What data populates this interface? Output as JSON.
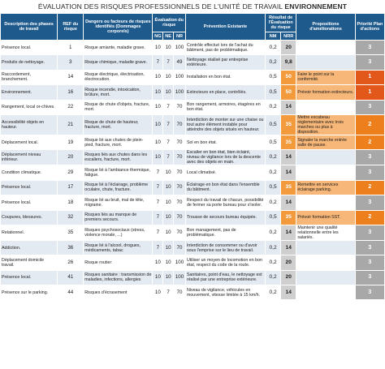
{
  "title": {
    "prefix": "ÉVALUATION DES RISQUES PROFESSIONNELS DE L'UNITÉ DE TRAVAIL",
    "bold": "ENVIRONNEMENT"
  },
  "headers": {
    "description": "Description des phases de travail",
    "ref": "REF du risque",
    "dangers": "Dangers ou facteurs de risques identifiés (Dommages corporels)",
    "evaluation": "Évaluation du risque",
    "ng": "NG",
    "ne": "NE",
    "nr": "NR",
    "prevention": "Prévention Existante",
    "result": "Résultat de l'Évaluation du risque",
    "nm": "NM",
    "nrr": "NRR",
    "propositions": "Propositions d'améliorations",
    "priority": "Priorité Plan d'actions"
  },
  "colors": {
    "header": "#1f5a8c",
    "nrr_orange": "#f39a3d",
    "priority_red": "#e2571a",
    "priority_orange": "#ee7f1d",
    "priority_grey": "#a8a8a8"
  },
  "rows": [
    {
      "desc": "Présence local.",
      "ref": "1",
      "danger": "Risque amiante, maladie grave.",
      "ng": "10",
      "ne": "10",
      "nr": "100",
      "prev": "Contrôle effectué lors de l'achat du bâtiment, pas de problématique.",
      "nm": "0,2",
      "nrr": "20",
      "prop": "",
      "prio": "3",
      "nrr_level": "grey",
      "prio_level": "grey"
    },
    {
      "desc": "Produits de nettoyage.",
      "ref": "3",
      "danger": "Risque chimique, maladie grave.",
      "ng": "7",
      "ne": "7",
      "nr": "49",
      "prev": "Nettoyage réalisé par entreprise extérieure.",
      "nm": "0,2",
      "nrr": "9,8",
      "prop": "",
      "prio": "3",
      "nrr_level": "grey",
      "prio_level": "grey"
    },
    {
      "desc": "Raccordement, branchement.",
      "ref": "14",
      "danger": "Risque électrique, électrisation, électrocution.",
      "ng": "10",
      "ne": "10",
      "nr": "100",
      "prev": "Installation en bon état.",
      "nm": "0,5",
      "nrr": "50",
      "prop": "Faire le point sur la conformité.",
      "prio": "1",
      "nrr_level": "orange",
      "prio_level": "red"
    },
    {
      "desc": "Environnement.",
      "ref": "16",
      "danger": "Risque incendie, intoxication, brûlure, mort.",
      "ng": "10",
      "ne": "10",
      "nr": "100",
      "prev": "Extincteurs en place, contrôlés.",
      "nm": "0,5",
      "nrr": "50",
      "prop": "Prévoir formation extincteurs.",
      "prio": "1",
      "nrr_level": "orange",
      "prio_level": "red"
    },
    {
      "desc": "Rangement, local or-chives.",
      "ref": "22",
      "danger": "Risque de chute d'objets, fracture, mort.",
      "ng": "10",
      "ne": "7",
      "nr": "70",
      "prev": "Bon rangement, armoires, étagères en bon état.",
      "nm": "0,2",
      "nrr": "14",
      "prop": "",
      "prio": "3",
      "nrr_level": "grey",
      "prio_level": "grey"
    },
    {
      "desc": "Accessibilité objets en hauteur.",
      "ref": "21",
      "danger": "Risque de chute de hauteur, fracture, mort.",
      "ng": "10",
      "ne": "7",
      "nr": "70",
      "prev": "Interdiction de monter sur une chaise ou tout autre élément instable pour atteindre des objets situés en hauteur.",
      "nm": "0,5",
      "nrr": "35",
      "prop": "Mettre escabeau réglementaire avec trois marches ou plus à disposition.",
      "prio": "2",
      "nrr_level": "orange",
      "prio_level": "orange"
    },
    {
      "desc": "Déplacement local.",
      "ref": "19",
      "danger": "Risque lié aux chutes de plein-pied, fracture, mort.",
      "ng": "10",
      "ne": "7",
      "nr": "70",
      "prev": "Sol en bon état.",
      "nm": "0,5",
      "nrr": "35",
      "prop": "Signaler la marche entrée salle de pause.",
      "prio": "2",
      "nrr_level": "orange",
      "prio_level": "orange"
    },
    {
      "desc": "Déplacement niveau inférieur.",
      "ref": "20",
      "danger": "Risques liés aux chutes dans les escaliers, fracture, mort.",
      "ng": "10",
      "ne": "7",
      "nr": "70",
      "prev": "Escalier en bon état, bien éclairé, niveau de vigilance lors de la descente avec des objets en main.",
      "nm": "0,2",
      "nrr": "14",
      "prop": "",
      "prio": "3",
      "nrr_level": "grey",
      "prio_level": "grey"
    },
    {
      "desc": "Condition climatique.",
      "ref": "29",
      "danger": "Risque lié à l'ambiance thermique, fatigue.",
      "ng": "7",
      "ne": "10",
      "nr": "70",
      "prev": "Local climatisé.",
      "nm": "0,2",
      "nrr": "14",
      "prop": "",
      "prio": "3",
      "nrr_level": "grey",
      "prio_level": "grey"
    },
    {
      "desc": "Présence local.",
      "ref": "17",
      "danger": "Risque lié à l'éclairage, problème oculaire, chute, fracture.",
      "ng": "7",
      "ne": "10",
      "nr": "70",
      "prev": "Éclairage en bon état dans l'ensemble du bâtiment.",
      "nm": "0,5",
      "nrr": "35",
      "prop": "Remettre en services éclairage parking.",
      "prio": "2",
      "nrr_level": "orange",
      "prio_level": "orange"
    },
    {
      "desc": "Présence local.",
      "ref": "18",
      "danger": "Risque lié au bruit, mal de tête, migraine.",
      "ng": "7",
      "ne": "10",
      "nr": "70",
      "prev": "Respect du travail de chacun, possibilité de fermer sa porte bureau pour s'isoler.",
      "nm": "0,2",
      "nrr": "14",
      "prop": "",
      "prio": "3",
      "nrr_level": "grey",
      "prio_level": "grey"
    },
    {
      "desc": "Coupures, blessures.",
      "ref": "32",
      "danger": "Risques liés au manque de premiers secours.",
      "ng": "7",
      "ne": "10",
      "nr": "70",
      "prev": "Trousse de secours bureau équipée.",
      "nm": "0,5",
      "nrr": "35",
      "prop": "Prévoir formation SST.",
      "prio": "2",
      "nrr_level": "orange",
      "prio_level": "orange"
    },
    {
      "desc": "Relationnel.",
      "ref": "35",
      "danger": "Risques psychosociaux (stress, violence morale, ...)",
      "ng": "7",
      "ne": "10",
      "nr": "70",
      "prev": "Bon management, pas de problématique.",
      "nm": "0,2",
      "nrr": "14",
      "prop": "Maintenir une qualité relationnelle entre les salariés.",
      "prio": "3",
      "nrr_level": "grey",
      "prio_level": "grey"
    },
    {
      "desc": "Addiction.",
      "ref": "36",
      "danger": "Risque lié à l'alcool, drogues, médicaments, tabac",
      "ng": "7",
      "ne": "10",
      "nr": "70",
      "prev": "Interdiction de consommer ou d'avoir sous l'emprise sur le lieu de travail.",
      "nm": "0,2",
      "nrr": "14",
      "prop": "",
      "prio": "3",
      "nrr_level": "grey",
      "prio_level": "grey"
    },
    {
      "desc": "Déplacement domicile travail.",
      "ref": "26",
      "danger": "Risque routier",
      "ng": "10",
      "ne": "10",
      "nr": "100",
      "prev": "Utiliser un moyen de locomotion en bon état, respect du code de la route.",
      "nm": "0,2",
      "nrr": "20",
      "prop": "",
      "prio": "3",
      "nrr_level": "grey",
      "prio_level": "grey"
    },
    {
      "desc": "Présence local.",
      "ref": "41",
      "danger": "Risques sanitaire : transmission de maladies, infections, allergies",
      "ng": "10",
      "ne": "10",
      "nr": "100",
      "prev": "Sanitaires, point d'eau, le nettoyage est réalisé par une entreprise extérieure.",
      "nm": "0,2",
      "nrr": "20",
      "prop": "",
      "prio": "3",
      "nrr_level": "grey",
      "prio_level": "grey"
    },
    {
      "desc": "Présence sur le parking.",
      "ref": "44",
      "danger": "Risques d'écrasement",
      "ng": "10",
      "ne": "7",
      "nr": "70",
      "prev": "Niveau de vigilance, véhicules en mouvement, vitesse limitée à 15 km/h.",
      "nm": "0,2",
      "nrr": "14",
      "prop": "",
      "prio": "3",
      "nrr_level": "grey",
      "prio_level": "grey"
    }
  ]
}
